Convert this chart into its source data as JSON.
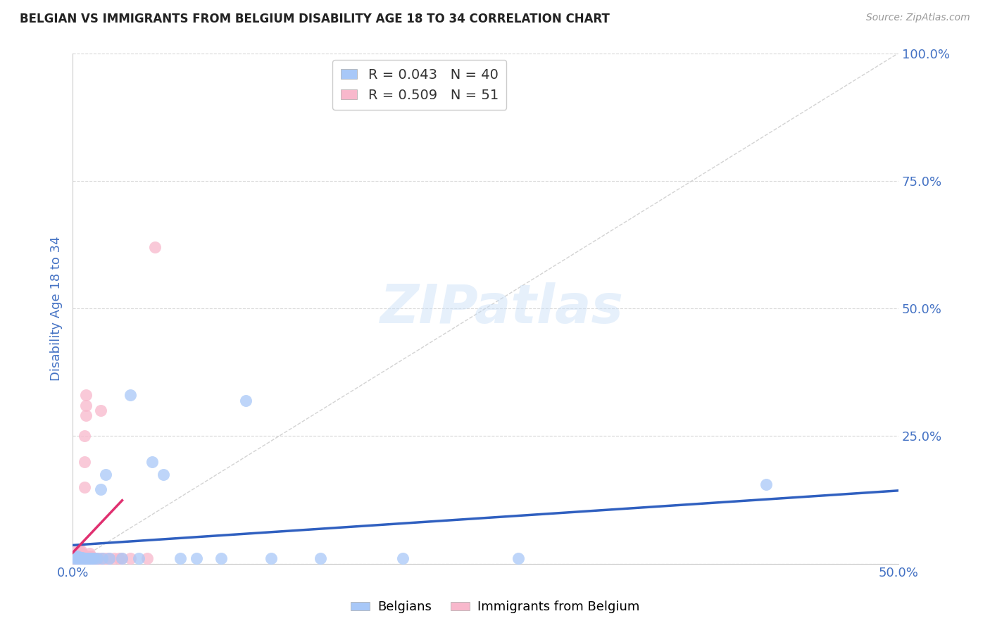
{
  "title": "BELGIAN VS IMMIGRANTS FROM BELGIUM DISABILITY AGE 18 TO 34 CORRELATION CHART",
  "source": "Source: ZipAtlas.com",
  "ylabel": "Disability Age 18 to 34",
  "xlim": [
    0.0,
    0.5
  ],
  "ylim": [
    0.0,
    1.0
  ],
  "xticks": [
    0.0,
    0.1,
    0.2,
    0.3,
    0.4,
    0.5
  ],
  "xticklabels": [
    "0.0%",
    "",
    "",
    "",
    "",
    "50.0%"
  ],
  "yticks": [
    0.0,
    0.25,
    0.5,
    0.75,
    1.0
  ],
  "yticklabels": [
    "",
    "25.0%",
    "50.0%",
    "75.0%",
    "100.0%"
  ],
  "belgian_color": "#a8c8f8",
  "immigrant_color": "#f8b8cc",
  "belgian_R": 0.043,
  "belgian_N": 40,
  "immigrant_R": 0.509,
  "immigrant_N": 51,
  "reg_color_blue": "#3060c0",
  "reg_color_pink": "#e03070",
  "diagonal_color": "#c8c8c8",
  "watermark_text": "ZIPatlas",
  "legend_label_blue": "Belgians",
  "legend_label_pink": "Immigrants from Belgium",
  "background_color": "#ffffff",
  "grid_color": "#d8d8d8",
  "title_color": "#222222",
  "label_color": "#4472c4",
  "tick_color": "#4472c4",
  "belgians_x": [
    0.001,
    0.001,
    0.002,
    0.002,
    0.002,
    0.003,
    0.003,
    0.003,
    0.004,
    0.004,
    0.005,
    0.005,
    0.006,
    0.006,
    0.007,
    0.008,
    0.009,
    0.01,
    0.011,
    0.012,
    0.013,
    0.015,
    0.017,
    0.018,
    0.02,
    0.022,
    0.03,
    0.035,
    0.04,
    0.048,
    0.055,
    0.065,
    0.075,
    0.09,
    0.105,
    0.12,
    0.15,
    0.2,
    0.27,
    0.42
  ],
  "belgians_y": [
    0.01,
    0.015,
    0.01,
    0.012,
    0.015,
    0.01,
    0.012,
    0.015,
    0.01,
    0.012,
    0.01,
    0.012,
    0.01,
    0.012,
    0.01,
    0.01,
    0.01,
    0.01,
    0.01,
    0.01,
    0.01,
    0.01,
    0.145,
    0.01,
    0.175,
    0.01,
    0.01,
    0.33,
    0.01,
    0.2,
    0.175,
    0.01,
    0.01,
    0.01,
    0.32,
    0.01,
    0.01,
    0.01,
    0.01,
    0.155
  ],
  "immigrants_x": [
    0.001,
    0.001,
    0.001,
    0.002,
    0.002,
    0.002,
    0.003,
    0.003,
    0.003,
    0.003,
    0.003,
    0.004,
    0.004,
    0.004,
    0.004,
    0.005,
    0.005,
    0.005,
    0.005,
    0.006,
    0.006,
    0.006,
    0.007,
    0.007,
    0.007,
    0.007,
    0.008,
    0.008,
    0.008,
    0.009,
    0.009,
    0.01,
    0.01,
    0.01,
    0.011,
    0.011,
    0.012,
    0.013,
    0.014,
    0.015,
    0.016,
    0.017,
    0.018,
    0.02,
    0.022,
    0.025,
    0.028,
    0.03,
    0.035,
    0.045,
    0.05
  ],
  "immigrants_y": [
    0.005,
    0.01,
    0.015,
    0.005,
    0.01,
    0.015,
    0.005,
    0.01,
    0.015,
    0.02,
    0.025,
    0.01,
    0.015,
    0.02,
    0.025,
    0.01,
    0.015,
    0.02,
    0.025,
    0.01,
    0.015,
    0.02,
    0.01,
    0.15,
    0.2,
    0.25,
    0.29,
    0.31,
    0.33,
    0.01,
    0.015,
    0.01,
    0.015,
    0.02,
    0.01,
    0.015,
    0.01,
    0.01,
    0.01,
    0.01,
    0.01,
    0.3,
    0.01,
    0.01,
    0.01,
    0.01,
    0.01,
    0.01,
    0.01,
    0.01,
    0.62
  ]
}
